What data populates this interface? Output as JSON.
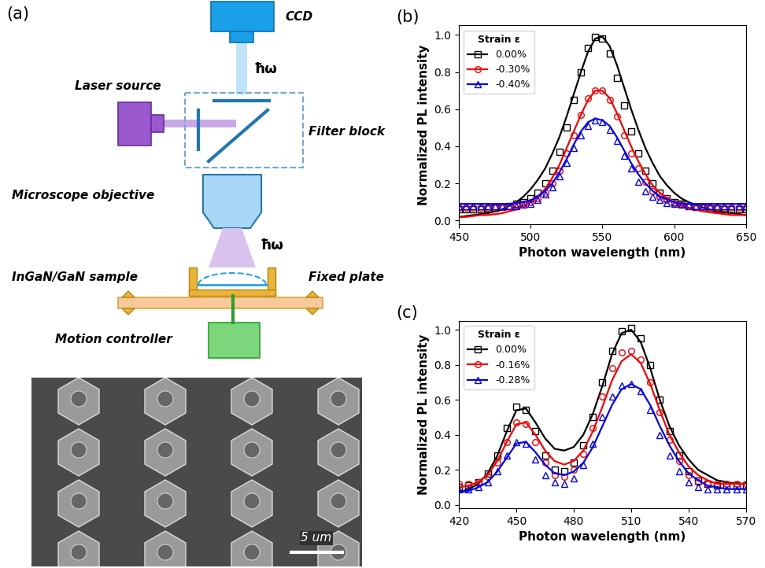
{
  "diagram": {
    "panel_label": "(a)",
    "components": {
      "camera": "CCD",
      "laser": "Laser source",
      "filter": "Filter block",
      "objective": "Microscope objective",
      "sample": "InGaN/GaN sample",
      "plate": "Fixed plate",
      "controller": "Motion controller"
    },
    "photon_labels": [
      "ħω",
      "ħω"
    ],
    "sem_scale_bar": "5 um"
  },
  "chart_data": [
    {
      "type": "line",
      "title": "(b)",
      "x_label": "Photon wavelength (nm)",
      "y_label": "Normalized PL intensity",
      "legend_title": "Strain ε",
      "legend": "upper left",
      "xlim": [
        450,
        650
      ],
      "xticks": [
        450,
        500,
        550,
        600,
        650
      ],
      "ylim": [
        -0.02,
        1.05
      ],
      "yticks": [
        {
          "value": 0,
          "label": "0.0"
        },
        0.2,
        0.4,
        0.6,
        0.8,
        {
          "value": 1,
          "label": "1.0"
        }
      ],
      "x": [
        450,
        455,
        460,
        465,
        470,
        475,
        480,
        485,
        490,
        495,
        500,
        505,
        510,
        515,
        520,
        525,
        530,
        535,
        540,
        545,
        550,
        555,
        560,
        565,
        570,
        575,
        580,
        585,
        590,
        595,
        600,
        605,
        610,
        615,
        620,
        625,
        630,
        635,
        640,
        645,
        650
      ],
      "series": [
        {
          "name": "0.00%",
          "color": "#000000",
          "marker": "square",
          "line_style": "solid",
          "values": [
            0.06,
            0.06,
            0.06,
            0.06,
            0.065,
            0.07,
            0.075,
            0.08,
            0.09,
            0.1,
            0.12,
            0.15,
            0.2,
            0.27,
            0.37,
            0.5,
            0.65,
            0.8,
            0.93,
            0.99,
            0.98,
            0.9,
            0.77,
            0.62,
            0.48,
            0.36,
            0.27,
            0.2,
            0.15,
            0.12,
            0.1,
            0.09,
            0.08,
            0.075,
            0.07,
            0.065,
            0.065,
            0.06,
            0.06,
            0.06,
            0.06
          ],
          "fit": [
            0.02,
            0.025,
            0.03,
            0.035,
            0.04,
            0.05,
            0.06,
            0.08,
            0.1,
            0.13,
            0.17,
            0.22,
            0.28,
            0.36,
            0.45,
            0.56,
            0.68,
            0.8,
            0.91,
            0.98,
            0.99,
            0.94,
            0.84,
            0.72,
            0.6,
            0.49,
            0.39,
            0.31,
            0.24,
            0.19,
            0.15,
            0.12,
            0.1,
            0.085,
            0.07,
            0.06,
            0.05,
            0.045,
            0.04,
            0.035,
            0.03
          ]
        },
        {
          "name": "-0.30%",
          "color": "#ff0000",
          "marker": "circle",
          "line_style": "solid",
          "values": [
            0.07,
            0.07,
            0.07,
            0.07,
            0.07,
            0.075,
            0.075,
            0.08,
            0.085,
            0.09,
            0.1,
            0.12,
            0.15,
            0.2,
            0.27,
            0.36,
            0.46,
            0.57,
            0.66,
            0.7,
            0.7,
            0.65,
            0.56,
            0.46,
            0.36,
            0.28,
            0.21,
            0.16,
            0.13,
            0.11,
            0.095,
            0.085,
            0.08,
            0.075,
            0.075,
            0.07,
            0.07,
            0.07,
            0.07,
            0.07,
            0.07
          ],
          "fit": [
            0.02,
            0.02,
            0.025,
            0.03,
            0.03,
            0.035,
            0.04,
            0.05,
            0.06,
            0.08,
            0.1,
            0.13,
            0.17,
            0.23,
            0.3,
            0.39,
            0.48,
            0.57,
            0.65,
            0.7,
            0.7,
            0.66,
            0.58,
            0.49,
            0.4,
            0.32,
            0.25,
            0.19,
            0.15,
            0.12,
            0.1,
            0.08,
            0.07,
            0.06,
            0.05,
            0.045,
            0.04,
            0.035,
            0.03,
            0.03,
            0.03
          ]
        },
        {
          "name": "-0.40%",
          "color": "#0000ff",
          "marker": "triangle",
          "line_style": "solid",
          "values": [
            0.08,
            0.08,
            0.08,
            0.08,
            0.08,
            0.08,
            0.08,
            0.08,
            0.08,
            0.085,
            0.09,
            0.11,
            0.14,
            0.18,
            0.24,
            0.31,
            0.39,
            0.46,
            0.51,
            0.54,
            0.53,
            0.49,
            0.43,
            0.35,
            0.28,
            0.21,
            0.16,
            0.13,
            0.11,
            0.095,
            0.09,
            0.085,
            0.085,
            0.08,
            0.08,
            0.08,
            0.08,
            0.08,
            0.08,
            0.08,
            0.08
          ],
          "fit": [
            0.09,
            0.09,
            0.09,
            0.09,
            0.09,
            0.09,
            0.09,
            0.09,
            0.095,
            0.1,
            0.11,
            0.13,
            0.16,
            0.2,
            0.26,
            0.33,
            0.41,
            0.48,
            0.53,
            0.55,
            0.54,
            0.51,
            0.45,
            0.38,
            0.31,
            0.25,
            0.2,
            0.16,
            0.13,
            0.115,
            0.1,
            0.09,
            0.09,
            0.09,
            0.09,
            0.09,
            0.09,
            0.09,
            0.09,
            0.09,
            0.09
          ]
        }
      ]
    },
    {
      "type": "line",
      "title": "(c)",
      "x_label": "Photon wavelength (nm)",
      "y_label": "Normalized PL intensity",
      "legend_title": "Strain ε",
      "legend": "upper left",
      "xlim": [
        420,
        570
      ],
      "xticks": [
        420,
        450,
        480,
        510,
        540,
        570
      ],
      "ylim": [
        -0.02,
        1.05
      ],
      "yticks": [
        {
          "value": 0,
          "label": "0.0"
        },
        0.2,
        0.4,
        0.6,
        0.8,
        {
          "value": 1,
          "label": "1.0"
        }
      ],
      "x": [
        420,
        425,
        430,
        435,
        440,
        445,
        450,
        455,
        460,
        465,
        470,
        475,
        480,
        485,
        490,
        495,
        500,
        505,
        510,
        515,
        520,
        525,
        530,
        535,
        540,
        545,
        550,
        555,
        560,
        565,
        570
      ],
      "series": [
        {
          "name": "0.00%",
          "color": "#000000",
          "marker": "square",
          "line_style": "solid",
          "values": [
            0.1,
            0.11,
            0.13,
            0.18,
            0.28,
            0.44,
            0.56,
            0.54,
            0.42,
            0.28,
            0.2,
            0.19,
            0.24,
            0.34,
            0.5,
            0.7,
            0.88,
            0.99,
            1.01,
            0.95,
            0.8,
            0.6,
            0.42,
            0.28,
            0.19,
            0.14,
            0.12,
            0.11,
            0.11,
            0.11,
            0.11
          ],
          "fit": [
            0.07,
            0.09,
            0.12,
            0.18,
            0.28,
            0.42,
            0.54,
            0.55,
            0.47,
            0.38,
            0.32,
            0.31,
            0.33,
            0.4,
            0.52,
            0.68,
            0.86,
            0.98,
            1.0,
            0.93,
            0.78,
            0.6,
            0.45,
            0.34,
            0.26,
            0.2,
            0.17,
            0.14,
            0.13,
            0.12,
            0.12
          ]
        },
        {
          "name": "-0.16%",
          "color": "#ff0000",
          "marker": "circle",
          "line_style": "solid",
          "values": [
            0.12,
            0.12,
            0.13,
            0.16,
            0.24,
            0.36,
            0.47,
            0.46,
            0.36,
            0.24,
            0.17,
            0.16,
            0.2,
            0.29,
            0.44,
            0.62,
            0.78,
            0.87,
            0.88,
            0.83,
            0.7,
            0.53,
            0.37,
            0.25,
            0.17,
            0.13,
            0.12,
            0.12,
            0.12,
            0.12,
            0.12
          ],
          "fit": [
            0.1,
            0.11,
            0.13,
            0.17,
            0.25,
            0.36,
            0.46,
            0.47,
            0.4,
            0.31,
            0.25,
            0.23,
            0.25,
            0.31,
            0.42,
            0.56,
            0.71,
            0.82,
            0.86,
            0.81,
            0.69,
            0.54,
            0.4,
            0.3,
            0.22,
            0.17,
            0.14,
            0.12,
            0.12,
            0.12,
            0.12
          ]
        },
        {
          "name": "-0.28%",
          "color": "#0000ff",
          "marker": "triangle",
          "line_style": "solid",
          "values": [
            0.09,
            0.09,
            0.1,
            0.13,
            0.19,
            0.28,
            0.36,
            0.35,
            0.26,
            0.17,
            0.13,
            0.12,
            0.15,
            0.23,
            0.35,
            0.5,
            0.62,
            0.68,
            0.69,
            0.65,
            0.54,
            0.4,
            0.28,
            0.19,
            0.13,
            0.1,
            0.09,
            0.09,
            0.09,
            0.09,
            0.09
          ],
          "fit": [
            0.07,
            0.08,
            0.1,
            0.13,
            0.19,
            0.27,
            0.35,
            0.36,
            0.3,
            0.23,
            0.18,
            0.17,
            0.19,
            0.24,
            0.33,
            0.45,
            0.57,
            0.66,
            0.69,
            0.66,
            0.57,
            0.45,
            0.34,
            0.25,
            0.18,
            0.14,
            0.11,
            0.1,
            0.09,
            0.09,
            0.09
          ]
        }
      ]
    }
  ]
}
